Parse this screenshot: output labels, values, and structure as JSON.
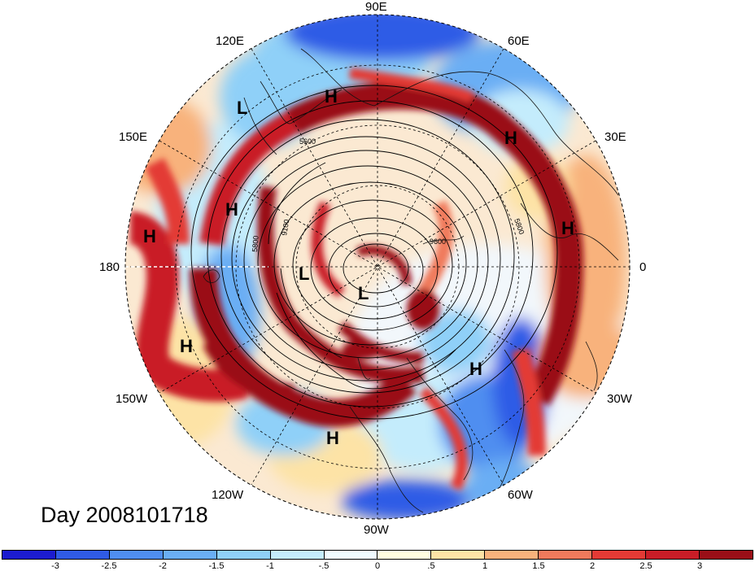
{
  "map": {
    "projection": "north polar stereographic",
    "longitude_labels": [
      "90E",
      "120E",
      "60E",
      "150E",
      "30E",
      "180",
      "0",
      "150W",
      "30W",
      "120W",
      "60W",
      "90W"
    ],
    "pressure_systems": [
      {
        "label": "H"
      },
      {
        "label": "L"
      },
      {
        "label": "H"
      },
      {
        "label": "H"
      },
      {
        "label": "H"
      },
      {
        "label": "H"
      },
      {
        "label": "L"
      },
      {
        "label": "L"
      },
      {
        "label": "H"
      },
      {
        "label": "H"
      },
      {
        "label": "H"
      }
    ],
    "contour_labels": [
      "5600",
      "9100",
      "5800",
      "9600",
      "5800"
    ],
    "day_label": "Day 2008101718"
  },
  "colorbar": {
    "colors": [
      "#1c1ccf",
      "#2f5be6",
      "#4f8ef0",
      "#6aaef4",
      "#8fd0f8",
      "#c4ecfc",
      "#f0fbfe",
      "#fffde0",
      "#fde3a6",
      "#f8b27c",
      "#f07a5c",
      "#e33a35",
      "#c91d27",
      "#9a0f17"
    ],
    "tick_labels": [
      "-3",
      "-2.5",
      "-2",
      "-1.5",
      "-1",
      "-.5",
      "0",
      ".5",
      "1",
      "1.5",
      "2",
      "2.5",
      "3"
    ]
  }
}
